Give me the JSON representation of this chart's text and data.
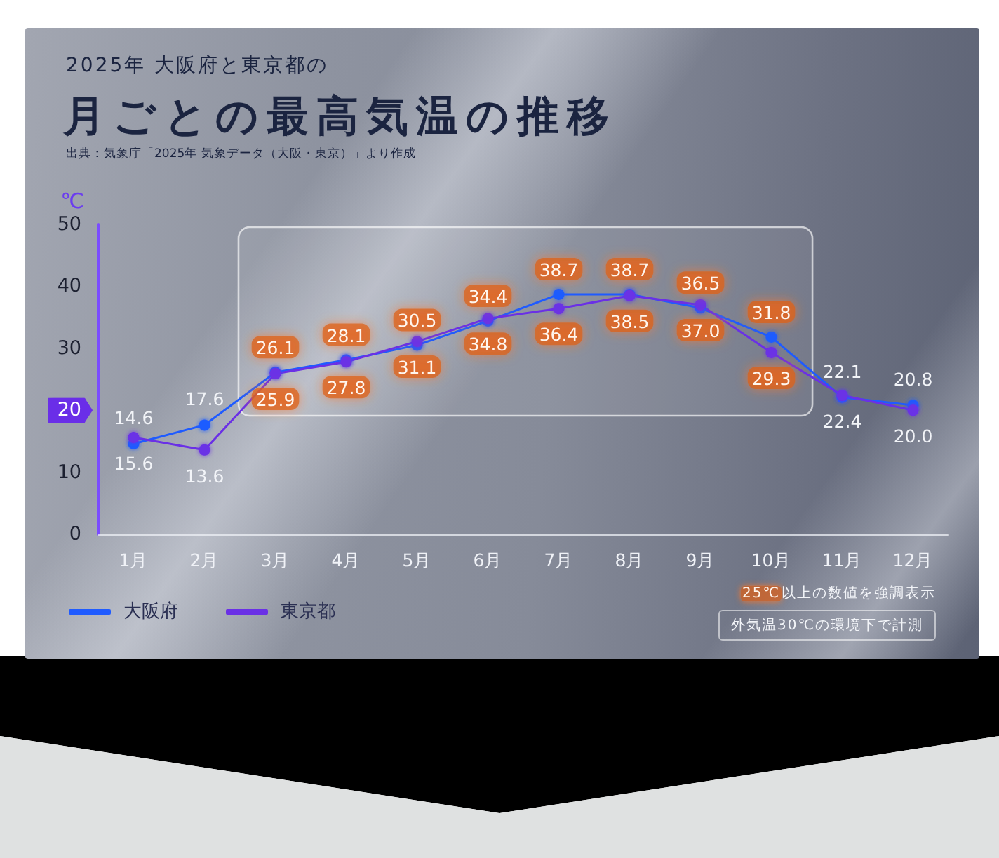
{
  "chart_data": {
    "type": "line",
    "title": "月ごとの最高気温の推移",
    "subtitle": "2025年 大阪府と東京都の",
    "ylabel": "℃",
    "categories": [
      "1月",
      "2月",
      "3月",
      "4月",
      "5月",
      "6月",
      "7月",
      "8月",
      "9月",
      "10月",
      "11月",
      "12月"
    ],
    "series": [
      {
        "name": "大阪府",
        "color": "#1f5bff",
        "values": [
          14.6,
          17.6,
          26.1,
          28.1,
          30.5,
          34.4,
          38.7,
          38.7,
          36.5,
          31.8,
          22.1,
          20.8
        ],
        "value_labels": [
          "14.6",
          "17.6",
          "26.1",
          "28.1",
          "30.5",
          "34.4",
          "38.7",
          "38.7",
          "36.5",
          "31.8",
          "22.1",
          "20.8"
        ]
      },
      {
        "name": "東京都",
        "color": "#6a30e6",
        "values": [
          15.6,
          13.6,
          25.9,
          27.8,
          31.1,
          34.8,
          36.4,
          38.5,
          37.0,
          29.3,
          22.4,
          20.0
        ],
        "value_labels": [
          "15.6",
          "13.6",
          "25.9",
          "27.8",
          "31.1",
          "34.8",
          "36.4",
          "38.5",
          "37.0",
          "29.3",
          "22.4",
          "20.0"
        ]
      }
    ],
    "ylim": [
      0,
      50
    ],
    "yticks": [
      0,
      10,
      20,
      30,
      40,
      50
    ],
    "legend": "bottom left",
    "marker": "circle",
    "line_style": "solid",
    "bands": [
      {
        "axis": "x",
        "from": "3月",
        "to": "10月"
      }
    ],
    "annotations": [
      "出典：気象庁「2025年 気象データ（大阪・東京）」より作成",
      "25℃以上の数値を強調表示",
      "外気温30℃の環境下で計測"
    ]
  }
}
